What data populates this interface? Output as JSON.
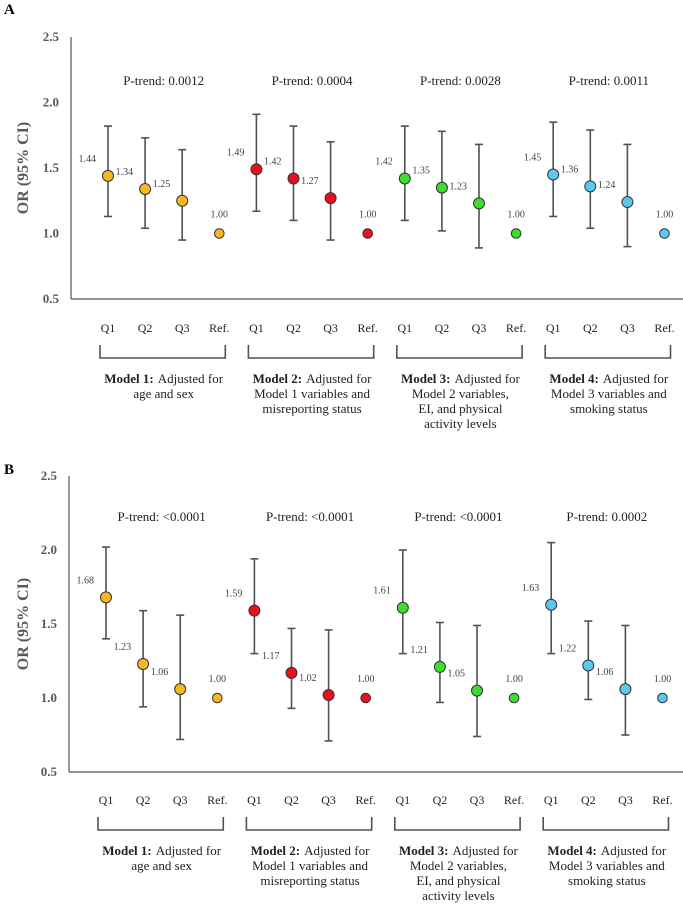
{
  "chart_data": [
    {
      "type": "scatter",
      "panel": "A",
      "ylabel": "OR (95% CI)",
      "ylim": [
        0.5,
        2.5
      ],
      "yticks": [
        "0.5",
        "1.0",
        "1.5",
        "2.0",
        "2.5"
      ],
      "categories": [
        "Q1",
        "Q2",
        "Q3",
        "Ref."
      ],
      "groups": [
        {
          "name": "Model 1",
          "bold": "Model 1:",
          "caption": [
            "Adjusted for",
            "age and sex"
          ],
          "color": "#F5B820",
          "p_trend": "P-trend: 0.0012",
          "values": [
            1.44,
            1.34,
            1.25,
            1.0
          ],
          "labels": [
            "1.44",
            "1.34",
            "1.25",
            "1.00"
          ],
          "ci_lower": [
            1.13,
            1.04,
            0.95,
            null
          ],
          "ci_upper": [
            1.82,
            1.73,
            1.64,
            null
          ]
        },
        {
          "name": "Model 2",
          "bold": "Model 2:",
          "caption": [
            "Adjusted for",
            "Model 1 variables and",
            "misreporting status"
          ],
          "color": "#E8101E",
          "p_trend": "P-trend: 0.0004",
          "values": [
            1.49,
            1.42,
            1.27,
            1.0
          ],
          "labels": [
            "1.49",
            "1.42",
            "1.27",
            "1.00"
          ],
          "ci_lower": [
            1.17,
            1.1,
            0.95,
            null
          ],
          "ci_upper": [
            1.91,
            1.82,
            1.7,
            null
          ]
        },
        {
          "name": "Model 3",
          "bold": "Model 3:",
          "caption": [
            "Adjusted for",
            "Model 2 variables,",
            "EI, and physical",
            "activity levels"
          ],
          "color": "#3EDC2E",
          "p_trend": "P-trend: 0.0028",
          "values": [
            1.42,
            1.35,
            1.23,
            1.0
          ],
          "labels": [
            "1.42",
            "1.35",
            "1.23",
            "1.00"
          ],
          "ci_lower": [
            1.1,
            1.02,
            0.89,
            null
          ],
          "ci_upper": [
            1.82,
            1.78,
            1.68,
            null
          ]
        },
        {
          "name": "Model 4",
          "bold": "Model 4:",
          "caption": [
            "Adjusted for",
            "Model 3 variables and",
            "smoking status"
          ],
          "color": "#5BC8F0",
          "p_trend": "P-trend: 0.0011",
          "values": [
            1.45,
            1.36,
            1.24,
            1.0
          ],
          "labels": [
            "1.45",
            "1.36",
            "1.24",
            "1.00"
          ],
          "ci_lower": [
            1.13,
            1.04,
            0.9,
            null
          ],
          "ci_upper": [
            1.85,
            1.79,
            1.68,
            null
          ]
        }
      ]
    },
    {
      "type": "scatter",
      "panel": "B",
      "ylabel": "OR (95% CI)",
      "ylim": [
        0.5,
        2.5
      ],
      "yticks": [
        "0.5",
        "1.0",
        "1.5",
        "2.0",
        "2.5"
      ],
      "categories": [
        "Q1",
        "Q2",
        "Q3",
        "Ref."
      ],
      "groups": [
        {
          "name": "Model 1",
          "bold": "Model 1:",
          "caption": [
            "Adjusted for",
            "age and sex"
          ],
          "color": "#F5B820",
          "p_trend": "P-trend: <0.0001",
          "values": [
            1.68,
            1.23,
            1.06,
            1.0
          ],
          "labels": [
            "1.68",
            "1.23",
            "1.06",
            "1.00"
          ],
          "ci_lower": [
            1.4,
            0.94,
            0.72,
            null
          ],
          "ci_upper": [
            2.02,
            1.59,
            1.56,
            null
          ]
        },
        {
          "name": "Model 2",
          "bold": "Model 2:",
          "caption": [
            "Adjusted for",
            "Model 1 variables and",
            "misreporting status"
          ],
          "color": "#E8101E",
          "p_trend": "P-trend: <0.0001",
          "values": [
            1.59,
            1.17,
            1.02,
            1.0
          ],
          "labels": [
            "1.59",
            "1.17",
            "1.02",
            "1.00"
          ],
          "ci_lower": [
            1.3,
            0.93,
            0.71,
            null
          ],
          "ci_upper": [
            1.94,
            1.47,
            1.46,
            null
          ]
        },
        {
          "name": "Model 3",
          "bold": "Model 3:",
          "caption": [
            "Adjusted for",
            "Model 2 variables,",
            "EI, and physical",
            "activity levels"
          ],
          "color": "#3EDC2E",
          "p_trend": "P-trend: <0.0001",
          "values": [
            1.61,
            1.21,
            1.05,
            1.0
          ],
          "labels": [
            "1.61",
            "1.21",
            "1.05",
            "1.00"
          ],
          "ci_lower": [
            1.3,
            0.97,
            0.74,
            null
          ],
          "ci_upper": [
            2.0,
            1.51,
            1.49,
            null
          ]
        },
        {
          "name": "Model 4",
          "bold": "Model 4:",
          "caption": [
            "Adjusted for",
            "Model 3 variables and",
            "smoking status"
          ],
          "color": "#5BC8F0",
          "p_trend": "P-trend: 0.0002",
          "values": [
            1.63,
            1.22,
            1.06,
            1.0
          ],
          "labels": [
            "1.63",
            "1.22",
            "1.06",
            "1.00"
          ],
          "ci_lower": [
            1.3,
            0.99,
            0.75,
            null
          ],
          "ci_upper": [
            2.05,
            1.52,
            1.49,
            null
          ]
        }
      ]
    }
  ]
}
